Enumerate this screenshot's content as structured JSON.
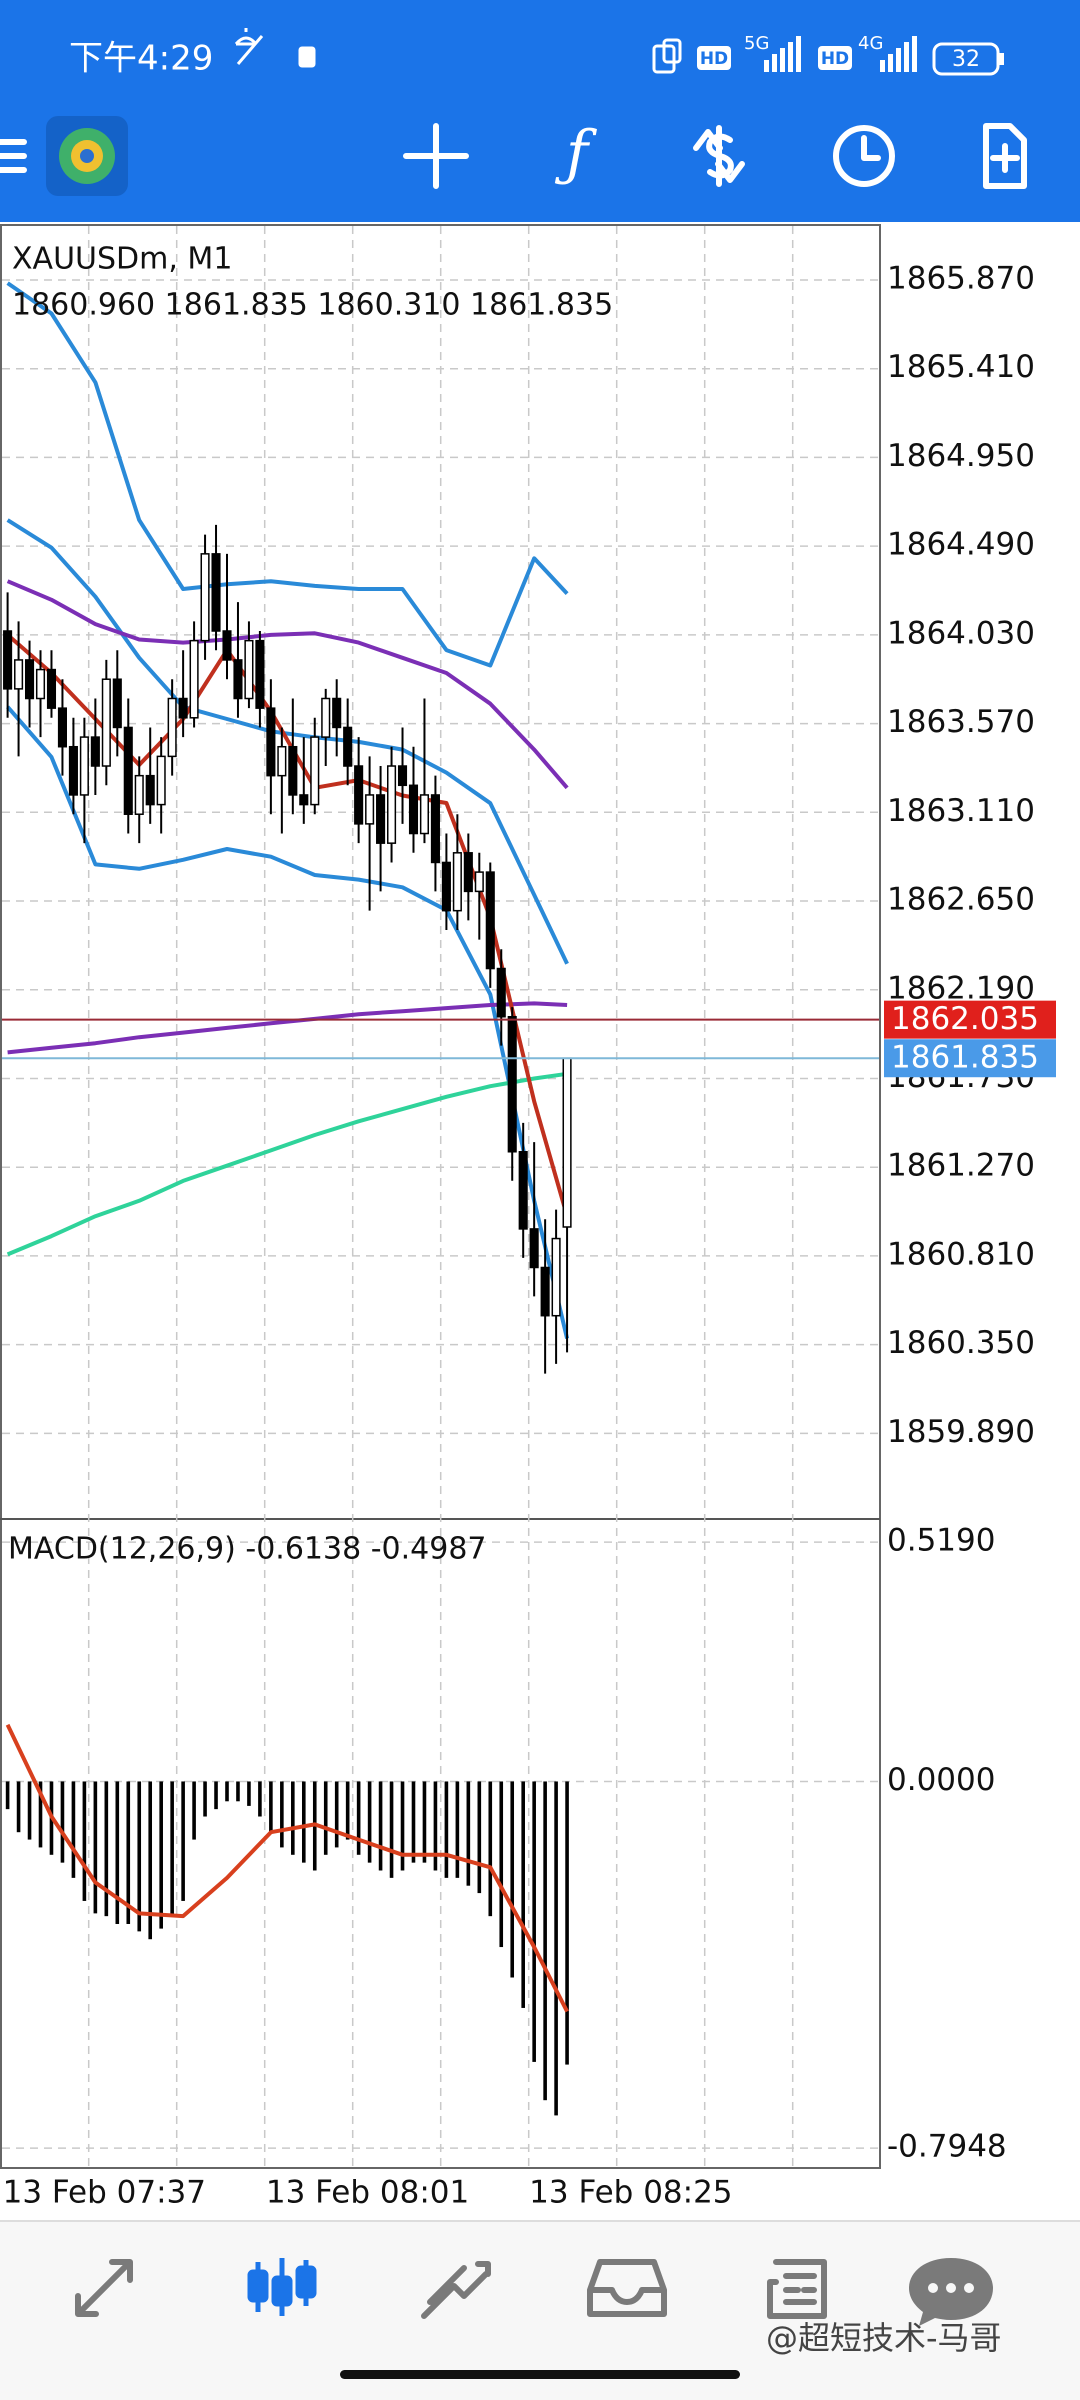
{
  "status_bar": {
    "time": "下午4:29",
    "hd_1": "HD",
    "net_1": "5G",
    "hd_2": "HD",
    "net_2": "4G",
    "battery": "32"
  },
  "watermark": "@超短技术-马哥",
  "chart_data": [
    {
      "type": "candlestick",
      "title": "XAUUSDm, M1",
      "subtitle": "1860.960 1861.835 1860.310 1861.835",
      "categories": [
        "13 Feb 07:37",
        null,
        null,
        null,
        null,
        null,
        null,
        null,
        null,
        null,
        null,
        null,
        null,
        null,
        null,
        null,
        null,
        null,
        null,
        null,
        null,
        null,
        null,
        null,
        "13 Feb 08:01",
        null,
        null,
        null,
        null,
        null,
        null,
        null,
        null,
        null,
        null,
        null,
        null,
        null,
        null,
        null,
        null,
        null,
        null,
        null,
        null,
        null,
        null,
        null,
        "13 Feb 08:25",
        null,
        null,
        null
      ],
      "open": [
        1864.05,
        1863.75,
        1863.9,
        1863.7,
        1863.85,
        1863.65,
        1863.45,
        1863.2,
        1863.5,
        1863.35,
        1863.8,
        1863.55,
        1863.1,
        1863.3,
        1863.15,
        1863.4,
        1863.7,
        1863.6,
        1864.0,
        1864.45,
        1864.05,
        1863.9,
        1863.7,
        1864.0,
        1863.65,
        1863.3,
        1863.45,
        1863.2,
        1863.15,
        1863.5,
        1863.7,
        1863.55,
        1863.35,
        1863.05,
        1863.2,
        1862.95,
        1863.35,
        1863.25,
        1863.0,
        1863.2,
        1862.85,
        1862.6,
        1862.9,
        1862.7,
        1862.8,
        1862.3,
        1862.05,
        1861.35,
        1860.95,
        1860.75,
        1860.5,
        1860.96
      ],
      "high": [
        1864.25,
        1864.1,
        1864.0,
        1863.95,
        1863.95,
        1863.8,
        1863.6,
        1863.6,
        1863.7,
        1863.9,
        1863.95,
        1863.7,
        1863.4,
        1863.55,
        1863.5,
        1863.8,
        1863.95,
        1864.1,
        1864.55,
        1864.6,
        1864.45,
        1864.2,
        1864.1,
        1864.05,
        1863.8,
        1863.55,
        1863.7,
        1863.5,
        1863.6,
        1863.75,
        1863.8,
        1863.7,
        1863.5,
        1863.4,
        1863.35,
        1863.45,
        1863.55,
        1863.45,
        1863.7,
        1863.3,
        1863.0,
        1863.1,
        1863.0,
        1862.9,
        1862.85,
        1862.4,
        1862.1,
        1861.5,
        1861.4,
        1861.0,
        1861.05,
        1861.835
      ],
      "low": [
        1863.6,
        1863.4,
        1863.55,
        1863.5,
        1863.6,
        1863.3,
        1863.1,
        1862.95,
        1863.2,
        1863.25,
        1863.4,
        1863.0,
        1862.95,
        1863.05,
        1863.0,
        1863.3,
        1863.5,
        1863.55,
        1863.9,
        1863.95,
        1863.8,
        1863.6,
        1863.65,
        1863.55,
        1863.1,
        1863.0,
        1863.1,
        1863.05,
        1863.1,
        1863.35,
        1863.4,
        1863.25,
        1862.95,
        1862.6,
        1862.7,
        1862.85,
        1863.05,
        1862.9,
        1862.95,
        1862.7,
        1862.5,
        1862.5,
        1862.55,
        1862.45,
        1862.2,
        1861.9,
        1861.2,
        1860.8,
        1860.6,
        1860.2,
        1860.25,
        1860.31
      ],
      "close": [
        1863.75,
        1863.9,
        1863.7,
        1863.85,
        1863.65,
        1863.45,
        1863.2,
        1863.5,
        1863.35,
        1863.8,
        1863.55,
        1863.1,
        1863.3,
        1863.15,
        1863.4,
        1863.7,
        1863.6,
        1864.0,
        1864.45,
        1864.05,
        1863.9,
        1863.7,
        1864.0,
        1863.65,
        1863.3,
        1863.45,
        1863.2,
        1863.15,
        1863.5,
        1863.7,
        1863.55,
        1863.35,
        1863.05,
        1863.2,
        1862.95,
        1863.35,
        1863.25,
        1863.0,
        1863.2,
        1862.85,
        1862.6,
        1862.9,
        1862.7,
        1862.8,
        1862.3,
        1862.05,
        1861.35,
        1860.95,
        1860.75,
        1860.5,
        1860.9,
        1861.835
      ],
      "up_color": "#ffffff",
      "down_color": "#000000",
      "wick_color": "#000000",
      "ylim": [
        1859.446,
        1866.155
      ],
      "yticks": [
        {
          "value": 1865.87,
          "label": "1865.870"
        },
        {
          "value": 1865.41,
          "label": "1865.410"
        },
        {
          "value": 1864.95,
          "label": "1864.950"
        },
        {
          "value": 1864.49,
          "label": "1864.490"
        },
        {
          "value": 1864.03,
          "label": "1864.030"
        },
        {
          "value": 1863.57,
          "label": "1863.570"
        },
        {
          "value": 1863.11,
          "label": "1863.110"
        },
        {
          "value": 1862.65,
          "label": "1862.650"
        },
        {
          "value": 1862.19,
          "label": "1862.190"
        },
        {
          "value": 1861.73,
          "label": "1861.730"
        },
        {
          "value": 1861.27,
          "label": "1861.270"
        },
        {
          "value": 1860.81,
          "label": "1860.810"
        },
        {
          "value": 1860.35,
          "label": "1860.350"
        },
        {
          "value": 1859.89,
          "label": "1859.890"
        }
      ],
      "grid": true,
      "overlays": [
        {
          "color": "#2a8ad8",
          "x": [
            0,
            4,
            8,
            12,
            16,
            20,
            24,
            28,
            32,
            36,
            40,
            44,
            48,
            51
          ],
          "values": [
            1865.854,
            1865.696,
            1865.339,
            1864.625,
            1864.268,
            1864.292,
            1864.308,
            1864.284,
            1864.268,
            1864.268,
            1863.951,
            1863.871,
            1864.427,
            1864.244
          ]
        },
        {
          "color": "#2a8ad8",
          "x": [
            0,
            4,
            8,
            12,
            16,
            20,
            24,
            28,
            32,
            36,
            40,
            44,
            48,
            51
          ],
          "values": [
            1864.625,
            1864.482,
            1864.228,
            1863.911,
            1863.657,
            1863.594,
            1863.53,
            1863.499,
            1863.475,
            1863.435,
            1863.316,
            1863.157,
            1862.682,
            1862.325
          ]
        },
        {
          "color": "#2a8ad8",
          "x": [
            0,
            4,
            8,
            12,
            16,
            20,
            24,
            28,
            32,
            36,
            40,
            44,
            48,
            51
          ],
          "values": [
            1863.657,
            1863.396,
            1862.84,
            1862.817,
            1862.864,
            1862.92,
            1862.88,
            1862.785,
            1862.761,
            1862.721,
            1862.603,
            1862.166,
            1861.096,
            1860.382
          ]
        },
        {
          "color": "#7b2fb5",
          "x": [
            0,
            4,
            8,
            12,
            16,
            20,
            24,
            28,
            32,
            36,
            40,
            44,
            48,
            51
          ],
          "values": [
            1864.308,
            1864.212,
            1864.086,
            1864.006,
            1863.99,
            1864.006,
            1864.03,
            1864.038,
            1863.99,
            1863.911,
            1863.832,
            1863.673,
            1863.435,
            1863.237
          ]
        },
        {
          "color": "#7b2fb5",
          "x": [
            0,
            4,
            8,
            12,
            16,
            20,
            24,
            28,
            32,
            36,
            40,
            44,
            48,
            51
          ],
          "values": [
            1861.865,
            1861.889,
            1861.913,
            1861.944,
            1861.968,
            1861.992,
            1862.016,
            1862.039,
            1862.063,
            1862.079,
            1862.095,
            1862.111,
            1862.119,
            1862.111
          ]
        },
        {
          "color": "#2fd39a",
          "x": [
            0,
            4,
            8,
            12,
            16,
            20,
            24,
            28,
            32,
            36,
            40,
            44,
            48,
            51
          ],
          "values": [
            1860.818,
            1860.913,
            1861.016,
            1861.096,
            1861.199,
            1861.278,
            1861.357,
            1861.437,
            1861.508,
            1861.571,
            1861.635,
            1861.69,
            1861.73,
            1861.754
          ]
        },
        {
          "color": "#c0301e",
          "x": [
            0,
            4,
            8,
            12,
            16,
            20,
            24,
            28,
            32,
            36,
            40,
            44,
            48,
            51
          ],
          "values": [
            1864.03,
            1863.832,
            1863.594,
            1863.356,
            1863.594,
            1863.951,
            1863.633,
            1863.237,
            1863.277,
            1863.197,
            1863.158,
            1862.563,
            1861.611,
            1861.016
          ]
        }
      ],
      "price_lines": [
        {
          "value": 1862.035,
          "color": "#e0201c",
          "line_color": "#9a2a36"
        },
        {
          "value": 1861.835,
          "color": "#4a9ae8",
          "line_color": "#7fb8d8"
        }
      ]
    },
    {
      "type": "bar",
      "title": "MACD(12,26,9) -0.6138 -0.4987",
      "color": "#000000",
      "values": [
        -0.06,
        -0.11,
        -0.126,
        -0.143,
        -0.159,
        -0.176,
        -0.209,
        -0.259,
        -0.286,
        -0.292,
        -0.309,
        -0.309,
        -0.325,
        -0.342,
        -0.319,
        -0.292,
        -0.259,
        -0.126,
        -0.076,
        -0.06,
        -0.043,
        -0.043,
        -0.053,
        -0.076,
        -0.11,
        -0.143,
        -0.159,
        -0.176,
        -0.193,
        -0.159,
        -0.143,
        -0.126,
        -0.159,
        -0.176,
        -0.193,
        -0.209,
        -0.193,
        -0.176,
        -0.176,
        -0.193,
        -0.209,
        -0.209,
        -0.226,
        -0.242,
        -0.292,
        -0.359,
        -0.425,
        -0.491,
        -0.608,
        -0.691,
        -0.724,
        -0.6138
      ],
      "signal": {
        "color": "#d8401e",
        "x": [
          0,
          4,
          8,
          12,
          16,
          20,
          24,
          28,
          32,
          36,
          40,
          44,
          48,
          51
        ],
        "values": [
          0.123,
          -0.076,
          -0.219,
          -0.286,
          -0.292,
          -0.209,
          -0.11,
          -0.093,
          -0.126,
          -0.159,
          -0.159,
          -0.186,
          -0.359,
          -0.4987
        ]
      },
      "ylim": [
        -0.838,
        0.569
      ],
      "yticks": [
        {
          "value": 0.519,
          "label": "0.5190"
        },
        {
          "value": 0,
          "label": "0.0000"
        },
        {
          "value": -0.7948,
          "label": "-0.7948"
        }
      ],
      "grid": true
    }
  ]
}
